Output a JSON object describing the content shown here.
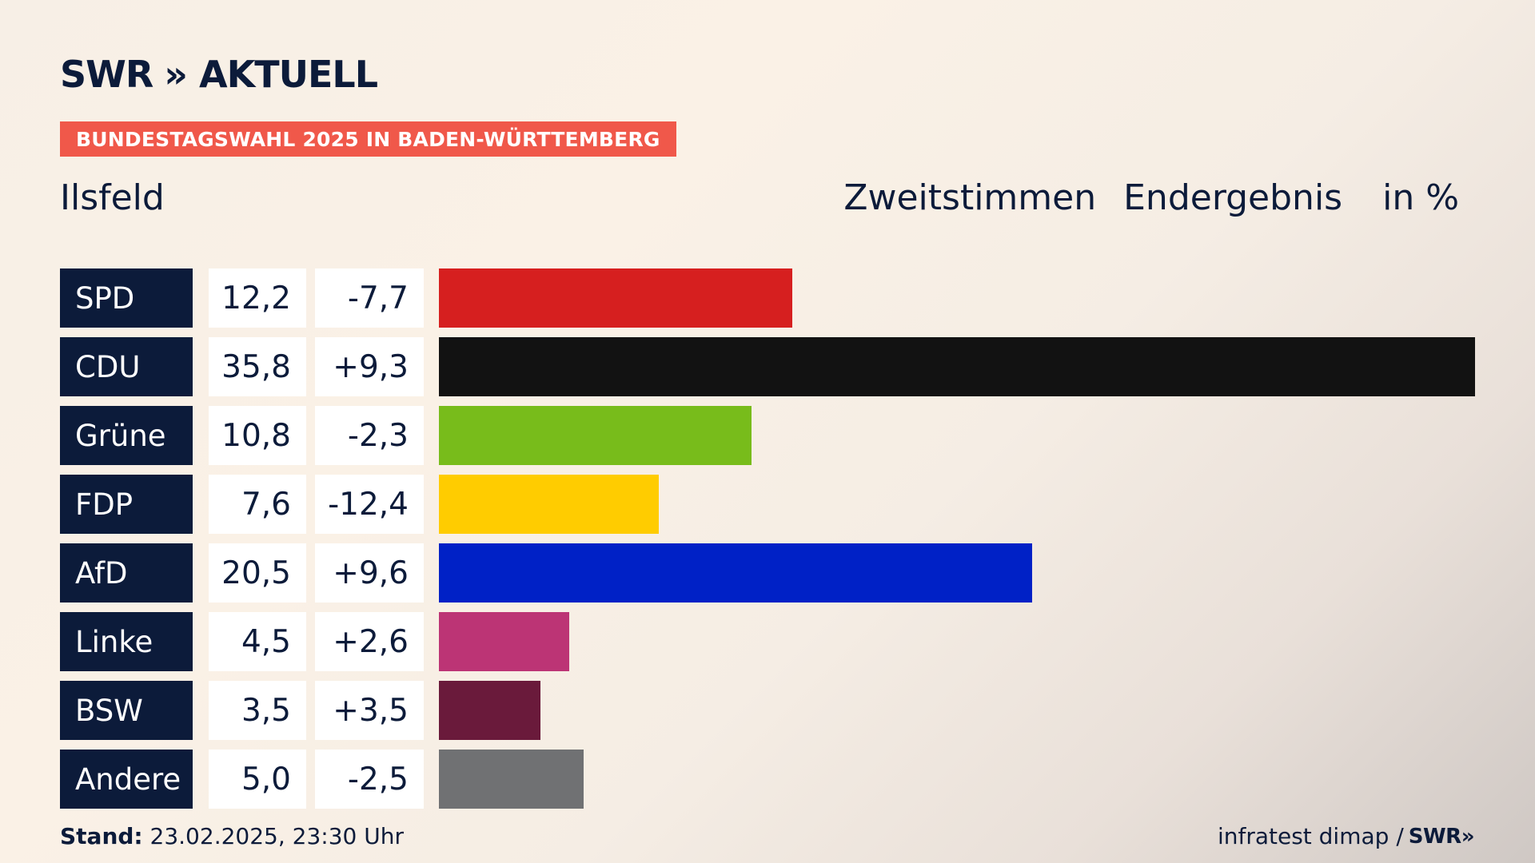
{
  "header": {
    "logo_text": "SWR",
    "logo_chevron": "»",
    "logo_suffix": "AKTUELL",
    "kicker": "BUNDESTAGSWAHL 2025 IN BADEN-WÜRTTEMBERG",
    "place": "Ilsfeld",
    "vote_type": "Zweitstimmen",
    "status": "Endergebnis",
    "unit": "in %"
  },
  "chart_data": {
    "type": "bar",
    "categories": [
      "SPD",
      "CDU",
      "Grüne",
      "FDP",
      "AfD",
      "Linke",
      "BSW",
      "Andere"
    ],
    "values": [
      12.2,
      35.8,
      10.8,
      7.6,
      20.5,
      4.5,
      3.5,
      5.0
    ],
    "value_labels": [
      "12,2",
      "35,8",
      "10,8",
      "7,6",
      "20,5",
      "4,5",
      "3,5",
      "5,0"
    ],
    "diff_labels": [
      "-7,7",
      "+9,3",
      "-2,3",
      "-12,4",
      "+9,6",
      "+2,6",
      "+3,5",
      "-2,5"
    ],
    "diffs": [
      -7.7,
      9.3,
      -2.3,
      -12.4,
      9.6,
      2.6,
      3.5,
      -2.5
    ],
    "colors": [
      "#d61f1f",
      "#121212",
      "#78bc1b",
      "#ffcc00",
      "#0021c6",
      "#bc3475",
      "#6a1a3b",
      "#707173"
    ],
    "xlim": [
      0,
      35.8
    ],
    "orientation": "horizontal",
    "title": "Ilsfeld",
    "xlabel": "",
    "ylabel": ""
  },
  "footer": {
    "stand_label": "Stand:",
    "stand_value": "23.02.2025, 23:30 Uhr",
    "source": "infratest dimap /",
    "source_brand": "SWR",
    "source_chevron": "»"
  }
}
